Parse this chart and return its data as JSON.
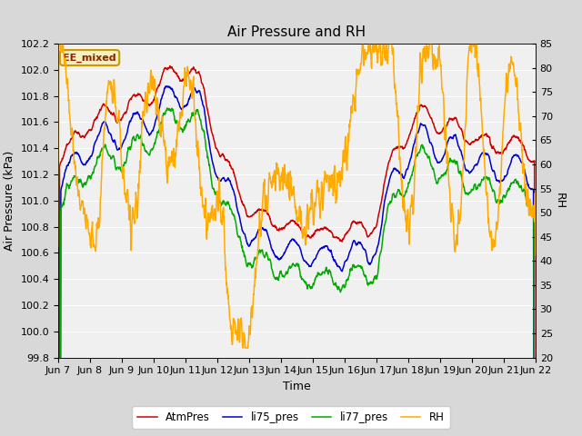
{
  "title": "Air Pressure and RH",
  "xlabel": "Time",
  "ylabel_left": "Air Pressure (kPa)",
  "ylabel_right": "RH",
  "annotation": "EE_mixed",
  "ylim_left": [
    99.8,
    102.2
  ],
  "ylim_right": [
    20,
    85
  ],
  "yticks_left": [
    99.8,
    100.0,
    100.2,
    100.4,
    100.6,
    100.8,
    101.0,
    101.2,
    101.4,
    101.6,
    101.8,
    102.0,
    102.2
  ],
  "yticks_right": [
    20,
    25,
    30,
    35,
    40,
    45,
    50,
    55,
    60,
    65,
    70,
    75,
    80,
    85
  ],
  "xtick_labels": [
    "Jun 7",
    "Jun 8",
    "Jun 9",
    "Jun 10",
    "Jun 11",
    "Jun 12",
    "Jun 13",
    "Jun 14",
    "Jun 15",
    "Jun 16",
    "Jun 17",
    "Jun 18",
    "Jun 19",
    "Jun 20",
    "Jun 21",
    "Jun 22"
  ],
  "colors": {
    "AtmPres": "#cc0000",
    "li75_pres": "#0000cc",
    "li77_pres": "#00aa00",
    "RH": "#ffaa00"
  },
  "legend_labels": [
    "AtmPres",
    "li75_pres",
    "li77_pres",
    "RH"
  ],
  "bg_color": "#d8d8d8",
  "plot_bg_color": "#e8e8e8",
  "inner_bg_color": "#f0f0f0",
  "grid_color": "#ffffff",
  "title_fontsize": 11,
  "axis_fontsize": 9,
  "tick_fontsize": 8,
  "n_days": 15,
  "annotation_color": "#882200",
  "annotation_bg": "#f5f0c0",
  "annotation_edge": "#cc9900"
}
